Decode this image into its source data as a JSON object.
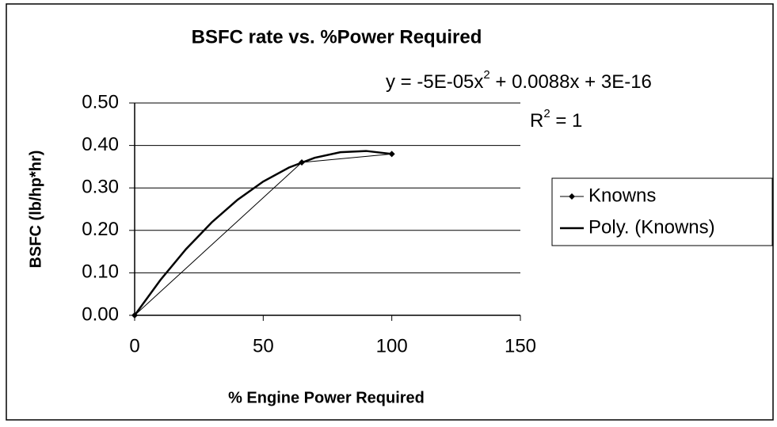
{
  "chart_data": {
    "type": "scatter-line",
    "title": "BSFC rate vs. %Power Required",
    "xlabel": "% Engine Power Required",
    "ylabel": "BSFC (lb/hp*hr)",
    "equation": [
      "y = -5E-05x",
      "2",
      " + 0.0088x + 3E-16"
    ],
    "r_squared": [
      "R",
      "2",
      " = 1"
    ],
    "series": [
      {
        "name": "Knowns",
        "color": "#000000",
        "marker": "diamond",
        "x": [
          0,
          65,
          100
        ],
        "values": [
          0,
          0.36,
          0.38
        ]
      },
      {
        "name": "Poly. (Knowns)",
        "color": "#000000",
        "marker": "none",
        "x": [
          0,
          10,
          20,
          30,
          40,
          50,
          60,
          70,
          80,
          90,
          100
        ],
        "values": [
          0,
          0.083,
          0.156,
          0.219,
          0.272,
          0.315,
          0.348,
          0.371,
          0.384,
          0.387,
          0.38
        ]
      }
    ],
    "xlim": [
      0,
      150
    ],
    "xticks": [
      0,
      50,
      100,
      150
    ],
    "ylim": [
      0,
      0.5
    ],
    "yticks": [
      {
        "value": 0,
        "label": "0.00"
      },
      {
        "value": 0.1,
        "label": "0.10"
      },
      {
        "value": 0.2,
        "label": "0.20"
      },
      {
        "value": 0.3,
        "label": "0.30"
      },
      {
        "value": 0.4,
        "label": "0.40"
      },
      {
        "value": 0.5,
        "label": "0.50"
      }
    ],
    "grid": true,
    "legend": "right"
  }
}
